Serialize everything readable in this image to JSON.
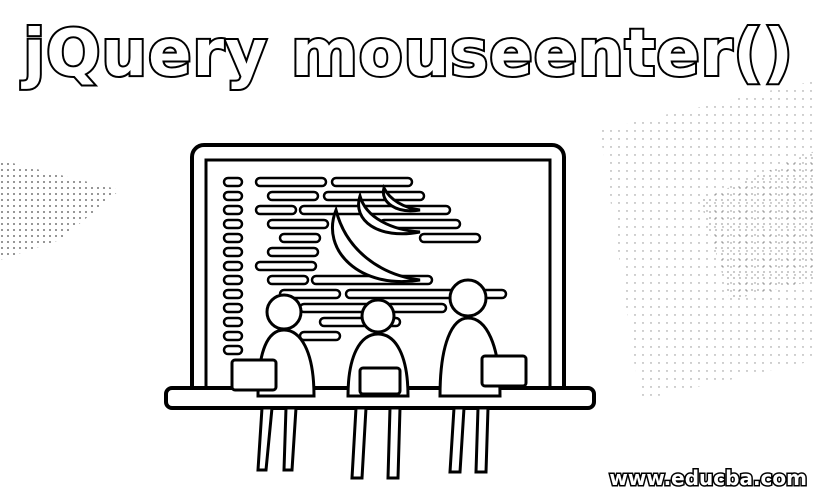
{
  "title": "jQuery mouseenter()",
  "watermark": "www.educba.com",
  "illustration": {
    "subject": "three developers sitting on a laptop with code on screen",
    "logo": "jquery-logo"
  }
}
